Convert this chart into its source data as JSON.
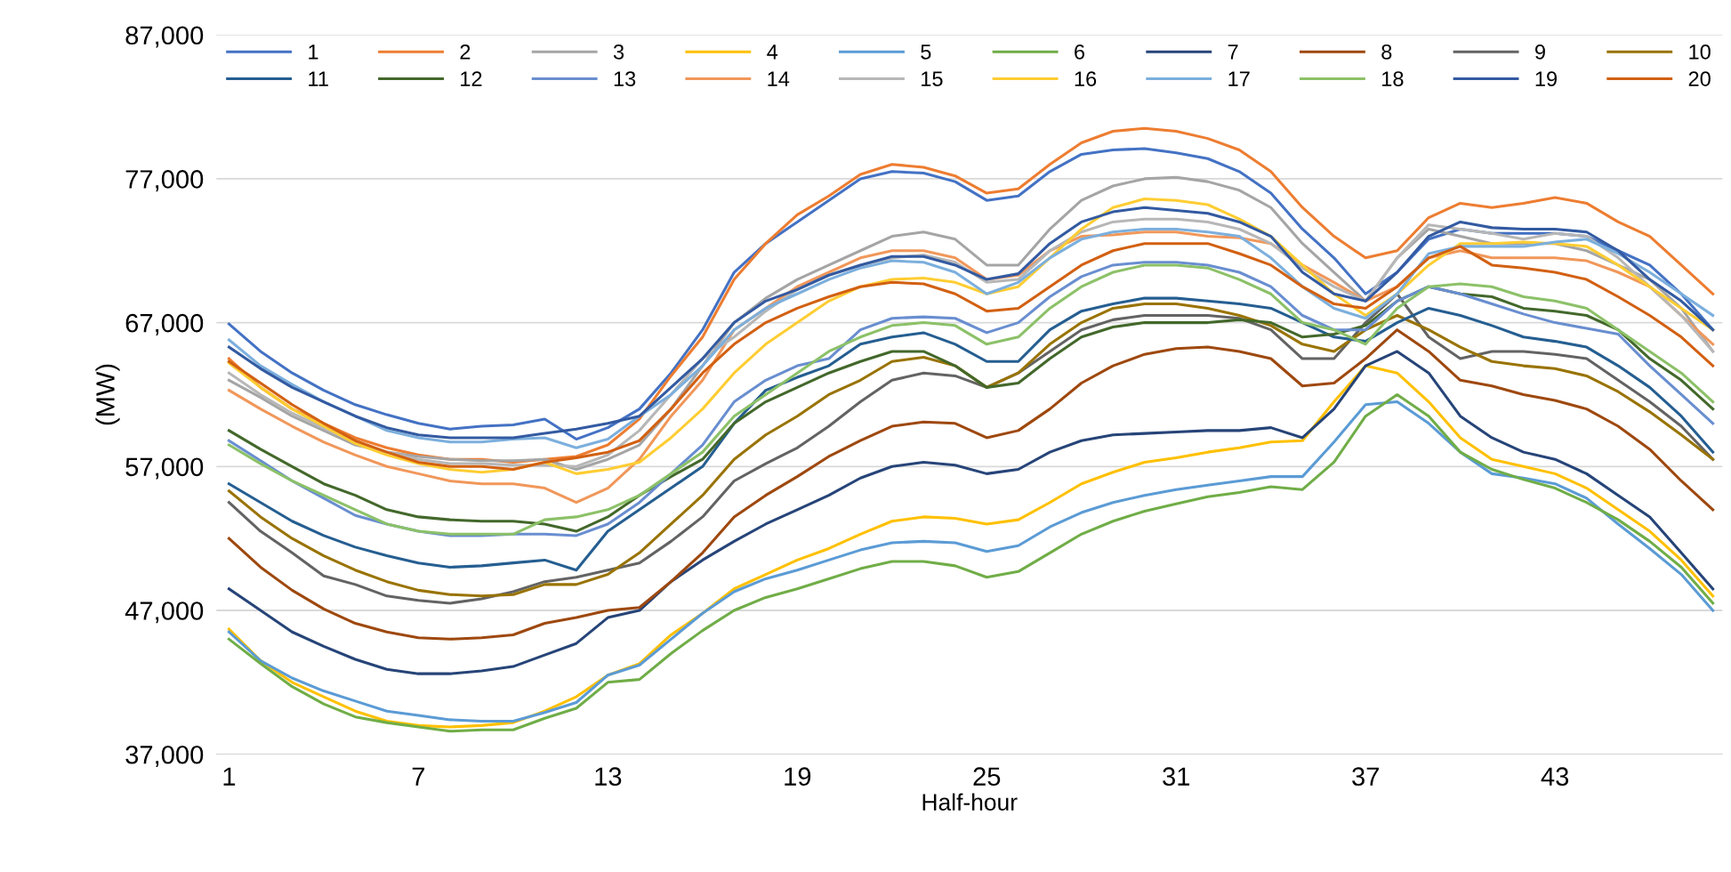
{
  "chart_data": {
    "type": "line",
    "xlabel": "Half-hour",
    "ylabel": "(MW)",
    "x": [
      1,
      2,
      3,
      4,
      5,
      6,
      7,
      8,
      9,
      10,
      11,
      12,
      13,
      14,
      15,
      16,
      17,
      18,
      19,
      20,
      21,
      22,
      23,
      24,
      25,
      26,
      27,
      28,
      29,
      30,
      31,
      32,
      33,
      34,
      35,
      36,
      37,
      38,
      39,
      40,
      41,
      42,
      43,
      44,
      45,
      46,
      47,
      48
    ],
    "xlim": [
      0.6,
      48.3
    ],
    "xticks": [
      1,
      7,
      13,
      19,
      25,
      31,
      37,
      43
    ],
    "ylim": [
      37000,
      87000
    ],
    "yticks": [
      {
        "value": 37000,
        "label": "37,000"
      },
      {
        "value": 47000,
        "label": "47,000"
      },
      {
        "value": 57000,
        "label": "57,000"
      },
      {
        "value": 67000,
        "label": "67,000"
      },
      {
        "value": 77000,
        "label": "77,000"
      },
      {
        "value": 87000,
        "label": "87,000"
      }
    ],
    "grid": "y",
    "legend": "top",
    "marker": "none",
    "line_style": "solid",
    "series": [
      {
        "name": "1",
        "color": "#4472c4",
        "values": [
          66900,
          65000,
          63500,
          62300,
          61300,
          60600,
          60000,
          59600,
          59800,
          59900,
          60300,
          58900,
          59700,
          61000,
          63500,
          66500,
          70500,
          72500,
          74000,
          75500,
          77000,
          77500,
          77400,
          76800,
          75500,
          75800,
          77500,
          78700,
          79000,
          79100,
          78800,
          78400,
          77500,
          76000,
          73500,
          71500,
          69000,
          70500,
          72800,
          73500,
          73200,
          73200,
          73200,
          73000,
          72000,
          71000,
          69000,
          66500
        ]
      },
      {
        "name": "2",
        "color": "#ed7d31",
        "values": [
          64500,
          62500,
          61000,
          60000,
          59000,
          58300,
          57800,
          57500,
          57500,
          57300,
          57500,
          57700,
          58500,
          60300,
          63300,
          66000,
          70000,
          72500,
          74500,
          75800,
          77300,
          78000,
          77800,
          77200,
          76000,
          76300,
          78000,
          79500,
          80300,
          80500,
          80300,
          79800,
          79000,
          77500,
          75000,
          73000,
          71500,
          72000,
          74300,
          75300,
          75000,
          75300,
          75700,
          75300,
          74000,
          73000,
          71000,
          69000
        ]
      },
      {
        "name": "3",
        "color": "#a5a5a5",
        "values": [
          63000,
          61800,
          60500,
          59500,
          58500,
          58000,
          57700,
          57500,
          57400,
          57400,
          57500,
          56800,
          57500,
          58500,
          61000,
          64000,
          67000,
          68700,
          70000,
          71000,
          72000,
          73000,
          73300,
          72800,
          71000,
          71000,
          73500,
          75500,
          76500,
          77000,
          77100,
          76800,
          76200,
          75000,
          72500,
          70500,
          68500,
          71500,
          73500,
          73000,
          72500,
          72500,
          72500,
          72000,
          71000,
          70000,
          68000,
          65000
        ]
      },
      {
        "name": "4",
        "color": "#ffc000",
        "values": [
          45700,
          43500,
          42000,
          41000,
          40000,
          39300,
          39000,
          38900,
          39000,
          39200,
          40000,
          41000,
          42500,
          43300,
          45300,
          46800,
          48500,
          49500,
          50500,
          51300,
          52300,
          53200,
          53500,
          53400,
          53000,
          53300,
          54500,
          55800,
          56600,
          57300,
          57600,
          58000,
          58300,
          58700,
          58800,
          61500,
          64000,
          63500,
          61500,
          59000,
          57500,
          57000,
          56500,
          55500,
          54000,
          52500,
          50500,
          48000
        ]
      },
      {
        "name": "5",
        "color": "#5b9bd5",
        "values": [
          45500,
          43500,
          42300,
          41400,
          40700,
          40000,
          39700,
          39400,
          39300,
          39300,
          39900,
          40600,
          42500,
          43200,
          45000,
          46800,
          48300,
          49200,
          49800,
          50500,
          51200,
          51700,
          51800,
          51700,
          51100,
          51500,
          52800,
          53800,
          54500,
          55000,
          55400,
          55700,
          56000,
          56300,
          56300,
          58700,
          61300,
          61500,
          60000,
          58000,
          56500,
          56200,
          55800,
          54800,
          53000,
          51300,
          49500,
          47000
        ]
      },
      {
        "name": "6",
        "color": "#70ad47",
        "values": [
          45000,
          43300,
          41700,
          40500,
          39600,
          39200,
          38900,
          38600,
          38700,
          38700,
          39500,
          40200,
          42000,
          42200,
          44000,
          45600,
          47000,
          47900,
          48500,
          49200,
          49900,
          50400,
          50400,
          50100,
          49300,
          49700,
          51000,
          52300,
          53200,
          53900,
          54400,
          54900,
          55200,
          55600,
          55400,
          57300,
          60500,
          62000,
          60500,
          58000,
          56800,
          56100,
          55500,
          54500,
          53300,
          51800,
          50000,
          47500
        ]
      },
      {
        "name": "7",
        "color": "#264478",
        "values": [
          48500,
          47000,
          45500,
          44500,
          43600,
          42900,
          42600,
          42600,
          42800,
          43100,
          43900,
          44700,
          46500,
          47000,
          49000,
          50500,
          51800,
          53000,
          54000,
          55000,
          56200,
          57000,
          57300,
          57100,
          56500,
          56800,
          58000,
          58800,
          59200,
          59300,
          59400,
          59500,
          59500,
          59700,
          59000,
          61000,
          64000,
          65000,
          63500,
          60500,
          59000,
          58000,
          57500,
          56500,
          55000,
          53500,
          51000,
          48500
        ]
      },
      {
        "name": "8",
        "color": "#9e480e",
        "values": [
          52000,
          50000,
          48400,
          47100,
          46100,
          45500,
          45100,
          45000,
          45100,
          45300,
          46100,
          46500,
          47000,
          47200,
          49000,
          51000,
          53500,
          55000,
          56300,
          57700,
          58800,
          59800,
          60100,
          60000,
          59000,
          59500,
          61000,
          62800,
          64000,
          64800,
          65200,
          65300,
          65000,
          64500,
          62600,
          62800,
          64500,
          66500,
          65000,
          63000,
          62600,
          62000,
          61600,
          61000,
          59800,
          58200,
          56000,
          54000
        ]
      },
      {
        "name": "9",
        "color": "#636363",
        "values": [
          54500,
          52500,
          51000,
          49400,
          48800,
          48000,
          47700,
          47500,
          47800,
          48300,
          49000,
          49300,
          49800,
          50300,
          51800,
          53500,
          56000,
          57200,
          58300,
          59800,
          61500,
          63000,
          63500,
          63300,
          62500,
          63500,
          65000,
          66500,
          67200,
          67500,
          67500,
          67500,
          67300,
          66500,
          64500,
          64500,
          67000,
          69000,
          66000,
          64500,
          65000,
          65000,
          64800,
          64500,
          63000,
          61500,
          59800,
          57500
        ]
      },
      {
        "name": "10",
        "color": "#997300",
        "values": [
          55300,
          53500,
          52000,
          50800,
          49800,
          49000,
          48400,
          48100,
          48000,
          48100,
          48800,
          48800,
          49500,
          51000,
          53000,
          55000,
          57500,
          59200,
          60500,
          62000,
          63000,
          64300,
          64600,
          64000,
          62500,
          63500,
          65500,
          67000,
          68000,
          68300,
          68300,
          68000,
          67500,
          66800,
          65500,
          65000,
          66500,
          67500,
          66500,
          65300,
          64300,
          64000,
          63800,
          63300,
          62200,
          60800,
          59200,
          57500
        ]
      },
      {
        "name": "11",
        "color": "#255e91",
        "values": [
          55800,
          54500,
          53200,
          52200,
          51400,
          50800,
          50300,
          50000,
          50100,
          50300,
          50500,
          49800,
          52500,
          54000,
          55500,
          57000,
          60000,
          62300,
          63200,
          64000,
          65500,
          66000,
          66300,
          65500,
          64300,
          64300,
          66500,
          67800,
          68300,
          68700,
          68700,
          68500,
          68300,
          68000,
          67000,
          66000,
          65700,
          67000,
          68000,
          67500,
          66800,
          66000,
          65700,
          65300,
          64000,
          62500,
          60500,
          58000
        ]
      },
      {
        "name": "12",
        "color": "#43682b",
        "values": [
          59500,
          58200,
          57000,
          55800,
          55000,
          54000,
          53500,
          53300,
          53200,
          53200,
          53000,
          52500,
          53500,
          55000,
          56300,
          57500,
          60000,
          61500,
          62500,
          63500,
          64300,
          65000,
          65000,
          64000,
          62500,
          62800,
          64500,
          66000,
          66700,
          67000,
          67000,
          67000,
          67200,
          67000,
          66000,
          66200,
          66800,
          68500,
          69500,
          69000,
          68800,
          68000,
          67800,
          67500,
          66500,
          64500,
          63000,
          61000
        ]
      },
      {
        "name": "13",
        "color": "#698ed0",
        "values": [
          58800,
          57400,
          56000,
          54800,
          53600,
          53000,
          52500,
          52200,
          52200,
          52300,
          52300,
          52200,
          53000,
          54500,
          56500,
          58500,
          61500,
          63000,
          64000,
          64500,
          66500,
          67300,
          67400,
          67300,
          66300,
          67000,
          68800,
          70200,
          71000,
          71200,
          71200,
          71000,
          70500,
          69500,
          67500,
          66500,
          66500,
          68500,
          69500,
          69000,
          68300,
          67600,
          67000,
          66600,
          66200,
          64000,
          62000,
          60000
        ]
      },
      {
        "name": "14",
        "color": "#f1975a",
        "values": [
          62300,
          61000,
          59800,
          58700,
          57800,
          57000,
          56500,
          56000,
          55800,
          55800,
          55500,
          54500,
          55500,
          57500,
          60500,
          63000,
          66500,
          68000,
          69500,
          70500,
          71500,
          72000,
          72000,
          71500,
          70000,
          70300,
          72000,
          73000,
          73100,
          73300,
          73300,
          73000,
          72900,
          72500,
          71000,
          69800,
          68500,
          69500,
          71500,
          72000,
          71500,
          71500,
          71500,
          71300,
          70500,
          69500,
          67500,
          65500
        ]
      },
      {
        "name": "15",
        "color": "#b7b7b7",
        "values": [
          63500,
          62000,
          60700,
          59700,
          58700,
          58000,
          57500,
          57200,
          57200,
          57100,
          57100,
          57000,
          57800,
          59500,
          62000,
          64500,
          66000,
          67800,
          69300,
          70300,
          71000,
          71500,
          71700,
          71200,
          69800,
          70000,
          72000,
          73300,
          74000,
          74200,
          74200,
          74000,
          73500,
          72500,
          70800,
          69500,
          68500,
          71500,
          73800,
          73500,
          73200,
          72800,
          73200,
          73000,
          71500,
          69500,
          67500,
          65000
        ]
      },
      {
        "name": "16",
        "color": "#ffcd33",
        "values": [
          64200,
          62500,
          61000,
          59800,
          58600,
          57800,
          57200,
          56800,
          56600,
          56800,
          57300,
          56500,
          56800,
          57300,
          59000,
          61000,
          63500,
          65500,
          67000,
          68500,
          69500,
          70000,
          70100,
          69800,
          69000,
          69500,
          71500,
          73500,
          75000,
          75600,
          75500,
          75200,
          74200,
          73000,
          71000,
          69000,
          67500,
          69000,
          71000,
          72500,
          72500,
          72600,
          72500,
          72300,
          71000,
          69500,
          68000,
          66500
        ]
      },
      {
        "name": "17",
        "color": "#7cafdd",
        "values": [
          65800,
          64000,
          62700,
          61500,
          60500,
          59500,
          59000,
          58700,
          58700,
          58900,
          59000,
          58300,
          58900,
          60500,
          62000,
          64000,
          66500,
          68000,
          69000,
          70000,
          70800,
          71300,
          71200,
          70500,
          69000,
          69800,
          71500,
          72800,
          73300,
          73500,
          73500,
          73300,
          73000,
          71500,
          69500,
          68000,
          67300,
          69000,
          71800,
          72300,
          72300,
          72300,
          72600,
          72800,
          71800,
          70500,
          69000,
          67500
        ]
      },
      {
        "name": "18",
        "color": "#8cc168",
        "values": [
          58500,
          57200,
          56000,
          55000,
          54000,
          53000,
          52500,
          52300,
          52300,
          52300,
          53300,
          53500,
          54000,
          55000,
          56500,
          58000,
          60500,
          62000,
          63500,
          65000,
          66000,
          66800,
          67000,
          66800,
          65500,
          66000,
          68000,
          69500,
          70500,
          71000,
          71000,
          70800,
          70000,
          69000,
          67000,
          66500,
          65500,
          68000,
          69500,
          69700,
          69500,
          68800,
          68500,
          68000,
          66500,
          65000,
          63500,
          61500
        ]
      },
      {
        "name": "19",
        "color": "#335aa1",
        "values": [
          65300,
          63800,
          62500,
          61500,
          60500,
          59700,
          59200,
          59000,
          59000,
          59000,
          59300,
          59600,
          60000,
          60500,
          62500,
          64500,
          67000,
          68500,
          69300,
          70300,
          71000,
          71600,
          71600,
          71000,
          70000,
          70400,
          72500,
          74000,
          74700,
          75000,
          74800,
          74600,
          74000,
          73000,
          70500,
          69000,
          68500,
          70500,
          73000,
          74000,
          73600,
          73500,
          73500,
          73300,
          72000,
          70000,
          68500,
          66500
        ]
      },
      {
        "name": "20",
        "color": "#d26012",
        "values": [
          64300,
          62800,
          61300,
          60000,
          58800,
          58000,
          57300,
          57000,
          57000,
          56800,
          57300,
          57600,
          58000,
          58800,
          61000,
          63500,
          65500,
          67000,
          68000,
          68800,
          69500,
          69800,
          69700,
          69000,
          67800,
          68000,
          69500,
          71000,
          72000,
          72500,
          72500,
          72500,
          71800,
          71000,
          69500,
          68300,
          68000,
          69500,
          71500,
          72300,
          71000,
          70800,
          70500,
          70000,
          68800,
          67500,
          66000,
          64000
        ]
      }
    ]
  }
}
